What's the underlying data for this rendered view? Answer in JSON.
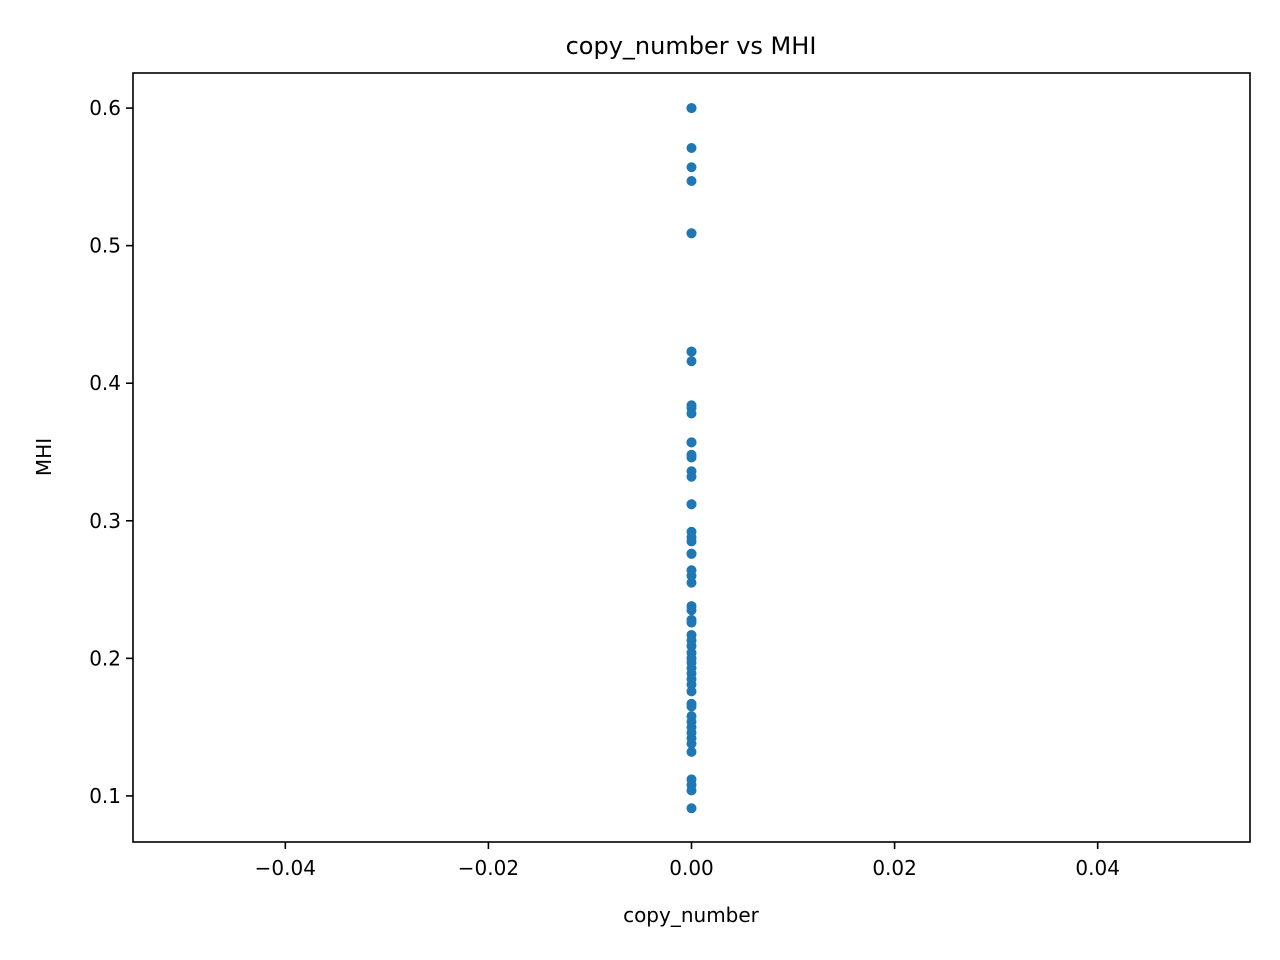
{
  "chart_data": {
    "type": "scatter",
    "title": "copy_number vs MHI",
    "xlabel": "copy_number",
    "ylabel": "MHI",
    "xlim": [
      -0.055,
      0.055
    ],
    "ylim": [
      0.0665,
      0.6255
    ],
    "xticks": [
      -0.04,
      -0.02,
      0.0,
      0.02,
      0.04
    ],
    "xtick_labels": [
      "−0.04",
      "−0.02",
      "0.00",
      "0.02",
      "0.04"
    ],
    "yticks": [
      0.1,
      0.2,
      0.3,
      0.4,
      0.5,
      0.6
    ],
    "ytick_labels": [
      "0.1",
      "0.2",
      "0.3",
      "0.4",
      "0.5",
      "0.6"
    ],
    "grid": false,
    "marker_color": "#1f77b4",
    "series": [
      {
        "x": [
          0,
          0,
          0,
          0,
          0,
          0,
          0,
          0,
          0,
          0,
          0,
          0,
          0,
          0,
          0,
          0,
          0,
          0,
          0,
          0,
          0,
          0,
          0,
          0,
          0,
          0,
          0,
          0,
          0,
          0,
          0,
          0,
          0,
          0,
          0,
          0,
          0,
          0,
          0,
          0,
          0,
          0,
          0,
          0,
          0,
          0,
          0,
          0,
          0,
          0,
          0,
          0,
          0,
          0,
          0,
          0,
          0
        ],
        "y": [
          0.6,
          0.571,
          0.557,
          0.547,
          0.509,
          0.423,
          0.416,
          0.384,
          0.382,
          0.378,
          0.357,
          0.348,
          0.346,
          0.336,
          0.332,
          0.312,
          0.292,
          0.288,
          0.285,
          0.276,
          0.264,
          0.26,
          0.255,
          0.238,
          0.235,
          0.228,
          0.226,
          0.217,
          0.213,
          0.209,
          0.204,
          0.2,
          0.197,
          0.193,
          0.189,
          0.185,
          0.181,
          0.176,
          0.167,
          0.165,
          0.158,
          0.154,
          0.15,
          0.146,
          0.142,
          0.138,
          0.132,
          0.112,
          0.108,
          0.104,
          0.091,
          0.6,
          0.509,
          0.423,
          0.357,
          0.312,
          0.276
        ]
      }
    ]
  }
}
